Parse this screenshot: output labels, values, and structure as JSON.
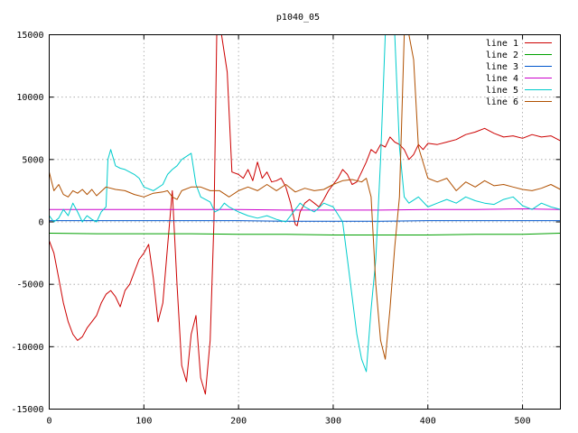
{
  "chart_data": {
    "type": "line",
    "title": "p1040_05",
    "xlabel": "",
    "ylabel": "",
    "xlim": [
      0,
      540
    ],
    "ylim": [
      -15000,
      15000
    ],
    "x_ticks": [
      0,
      100,
      200,
      300,
      400,
      500
    ],
    "y_ticks": [
      -15000,
      -10000,
      -5000,
      0,
      5000,
      10000,
      15000
    ],
    "grid": true,
    "legend_position": "top-right",
    "series": [
      {
        "name": "line 1",
        "color": "#cc0000",
        "x": [
          0,
          5,
          10,
          15,
          20,
          25,
          30,
          35,
          40,
          45,
          50,
          55,
          60,
          65,
          70,
          75,
          80,
          85,
          90,
          95,
          100,
          105,
          110,
          115,
          120,
          125,
          130,
          135,
          140,
          145,
          150,
          155,
          160,
          165,
          170,
          174,
          177,
          182,
          188,
          193,
          200,
          205,
          210,
          215,
          220,
          225,
          230,
          235,
          240,
          245,
          250,
          255,
          260,
          262,
          265,
          270,
          275,
          280,
          285,
          290,
          295,
          300,
          305,
          310,
          315,
          320,
          325,
          330,
          335,
          340,
          345,
          350,
          355,
          360,
          365,
          370,
          375,
          380,
          385,
          390,
          395,
          400,
          410,
          420,
          430,
          440,
          450,
          460,
          470,
          480,
          490,
          500,
          510,
          520,
          530,
          540
        ],
        "y": [
          -1500,
          -2500,
          -4500,
          -6500,
          -8000,
          -9000,
          -9500,
          -9200,
          -8500,
          -8000,
          -7500,
          -6500,
          -5800,
          -5500,
          -6000,
          -6800,
          -5500,
          -5000,
          -4000,
          -3000,
          -2500,
          -1800,
          -4500,
          -8000,
          -6500,
          -2000,
          2500,
          -5000,
          -11500,
          -12800,
          -9000,
          -7500,
          -12500,
          -13800,
          -9500,
          0,
          15000,
          15000,
          12000,
          4000,
          3800,
          3500,
          4200,
          3300,
          4800,
          3500,
          4000,
          3200,
          3300,
          3500,
          2800,
          1500,
          -200,
          -300,
          800,
          1500,
          1800,
          1500,
          1200,
          1800,
          2500,
          3000,
          3500,
          4200,
          3800,
          3000,
          3200,
          4000,
          4800,
          5800,
          5500,
          6200,
          6000,
          6800,
          6400,
          6200,
          5800,
          5000,
          5400,
          6200,
          5800,
          6300,
          6200,
          6400,
          6600,
          7000,
          7200,
          7500,
          7100,
          6800,
          6900,
          6700,
          7000,
          6800,
          6900,
          6500
        ]
      },
      {
        "name": "line 2",
        "color": "#00a000",
        "x": [
          0,
          50,
          100,
          150,
          200,
          250,
          300,
          350,
          400,
          450,
          500,
          540
        ],
        "y": [
          -900,
          -950,
          -950,
          -950,
          -1000,
          -1000,
          -1050,
          -1050,
          -1050,
          -1000,
          -1000,
          -900
        ]
      },
      {
        "name": "line 3",
        "color": "#0055cc",
        "x": [
          0,
          50,
          100,
          150,
          200,
          250,
          300,
          350,
          400,
          450,
          500,
          540
        ],
        "y": [
          100,
          100,
          100,
          100,
          100,
          50,
          50,
          50,
          100,
          100,
          100,
          100
        ]
      },
      {
        "name": "line 4",
        "color": "#cc00cc",
        "x": [
          0,
          50,
          100,
          150,
          200,
          250,
          300,
          350,
          400,
          450,
          500,
          540
        ],
        "y": [
          1000,
          1000,
          1000,
          1000,
          1000,
          950,
          950,
          950,
          1000,
          1000,
          1050,
          1000
        ]
      },
      {
        "name": "line 5",
        "color": "#00cccc",
        "x": [
          0,
          5,
          10,
          15,
          20,
          25,
          30,
          35,
          40,
          45,
          50,
          55,
          60,
          62,
          65,
          70,
          75,
          80,
          85,
          90,
          95,
          100,
          110,
          120,
          125,
          130,
          135,
          140,
          150,
          155,
          160,
          165,
          170,
          175,
          180,
          185,
          190,
          200,
          210,
          220,
          230,
          240,
          250,
          255,
          260,
          265,
          270,
          280,
          290,
          300,
          310,
          315,
          320,
          325,
          330,
          335,
          340,
          345,
          350,
          355,
          360,
          365,
          370,
          375,
          380,
          390,
          400,
          410,
          420,
          430,
          440,
          450,
          460,
          470,
          480,
          490,
          500,
          510,
          520,
          530,
          540
        ],
        "y": [
          500,
          0,
          300,
          1000,
          500,
          1500,
          800,
          0,
          500,
          200,
          0,
          800,
          1200,
          5000,
          5800,
          4500,
          4300,
          4200,
          4000,
          3800,
          3500,
          2800,
          2500,
          3000,
          3800,
          4200,
          4500,
          5000,
          5500,
          3000,
          2000,
          1800,
          1600,
          800,
          1000,
          1500,
          1200,
          800,
          500,
          300,
          500,
          200,
          0,
          500,
          1000,
          1500,
          1200,
          800,
          1500,
          1200,
          0,
          -3000,
          -6000,
          -9000,
          -11000,
          -12000,
          -7000,
          -3000,
          5000,
          15000,
          15000,
          15000,
          6000,
          2000,
          1500,
          2000,
          1200,
          1500,
          1800,
          1500,
          2000,
          1700,
          1500,
          1400,
          1800,
          2000,
          1300,
          1000,
          1500,
          1200,
          1000
        ]
      },
      {
        "name": "line 6",
        "color": "#b05000",
        "x": [
          0,
          5,
          10,
          15,
          20,
          25,
          30,
          35,
          40,
          45,
          50,
          60,
          70,
          80,
          90,
          100,
          110,
          120,
          125,
          130,
          135,
          140,
          150,
          160,
          170,
          180,
          190,
          200,
          210,
          220,
          230,
          240,
          250,
          260,
          270,
          280,
          290,
          300,
          310,
          320,
          330,
          335,
          340,
          345,
          350,
          355,
          360,
          365,
          370,
          375,
          380,
          385,
          390,
          400,
          410,
          420,
          430,
          440,
          450,
          460,
          470,
          480,
          490,
          500,
          510,
          520,
          530,
          540
        ],
        "y": [
          4000,
          2500,
          3000,
          2200,
          2000,
          2500,
          2300,
          2600,
          2200,
          2600,
          2100,
          2800,
          2600,
          2500,
          2200,
          2000,
          2300,
          2400,
          2500,
          2000,
          1800,
          2500,
          2800,
          2800,
          2500,
          2500,
          2000,
          2500,
          2800,
          2500,
          3000,
          2500,
          3000,
          2400,
          2700,
          2500,
          2600,
          3000,
          3300,
          3400,
          3200,
          3500,
          2000,
          -5000,
          -9500,
          -11000,
          -7000,
          -2000,
          2000,
          15000,
          15000,
          13000,
          6000,
          3500,
          3200,
          3500,
          2500,
          3200,
          2800,
          3300,
          2900,
          3000,
          2800,
          2600,
          2500,
          2700,
          3000,
          2600
        ]
      }
    ]
  }
}
